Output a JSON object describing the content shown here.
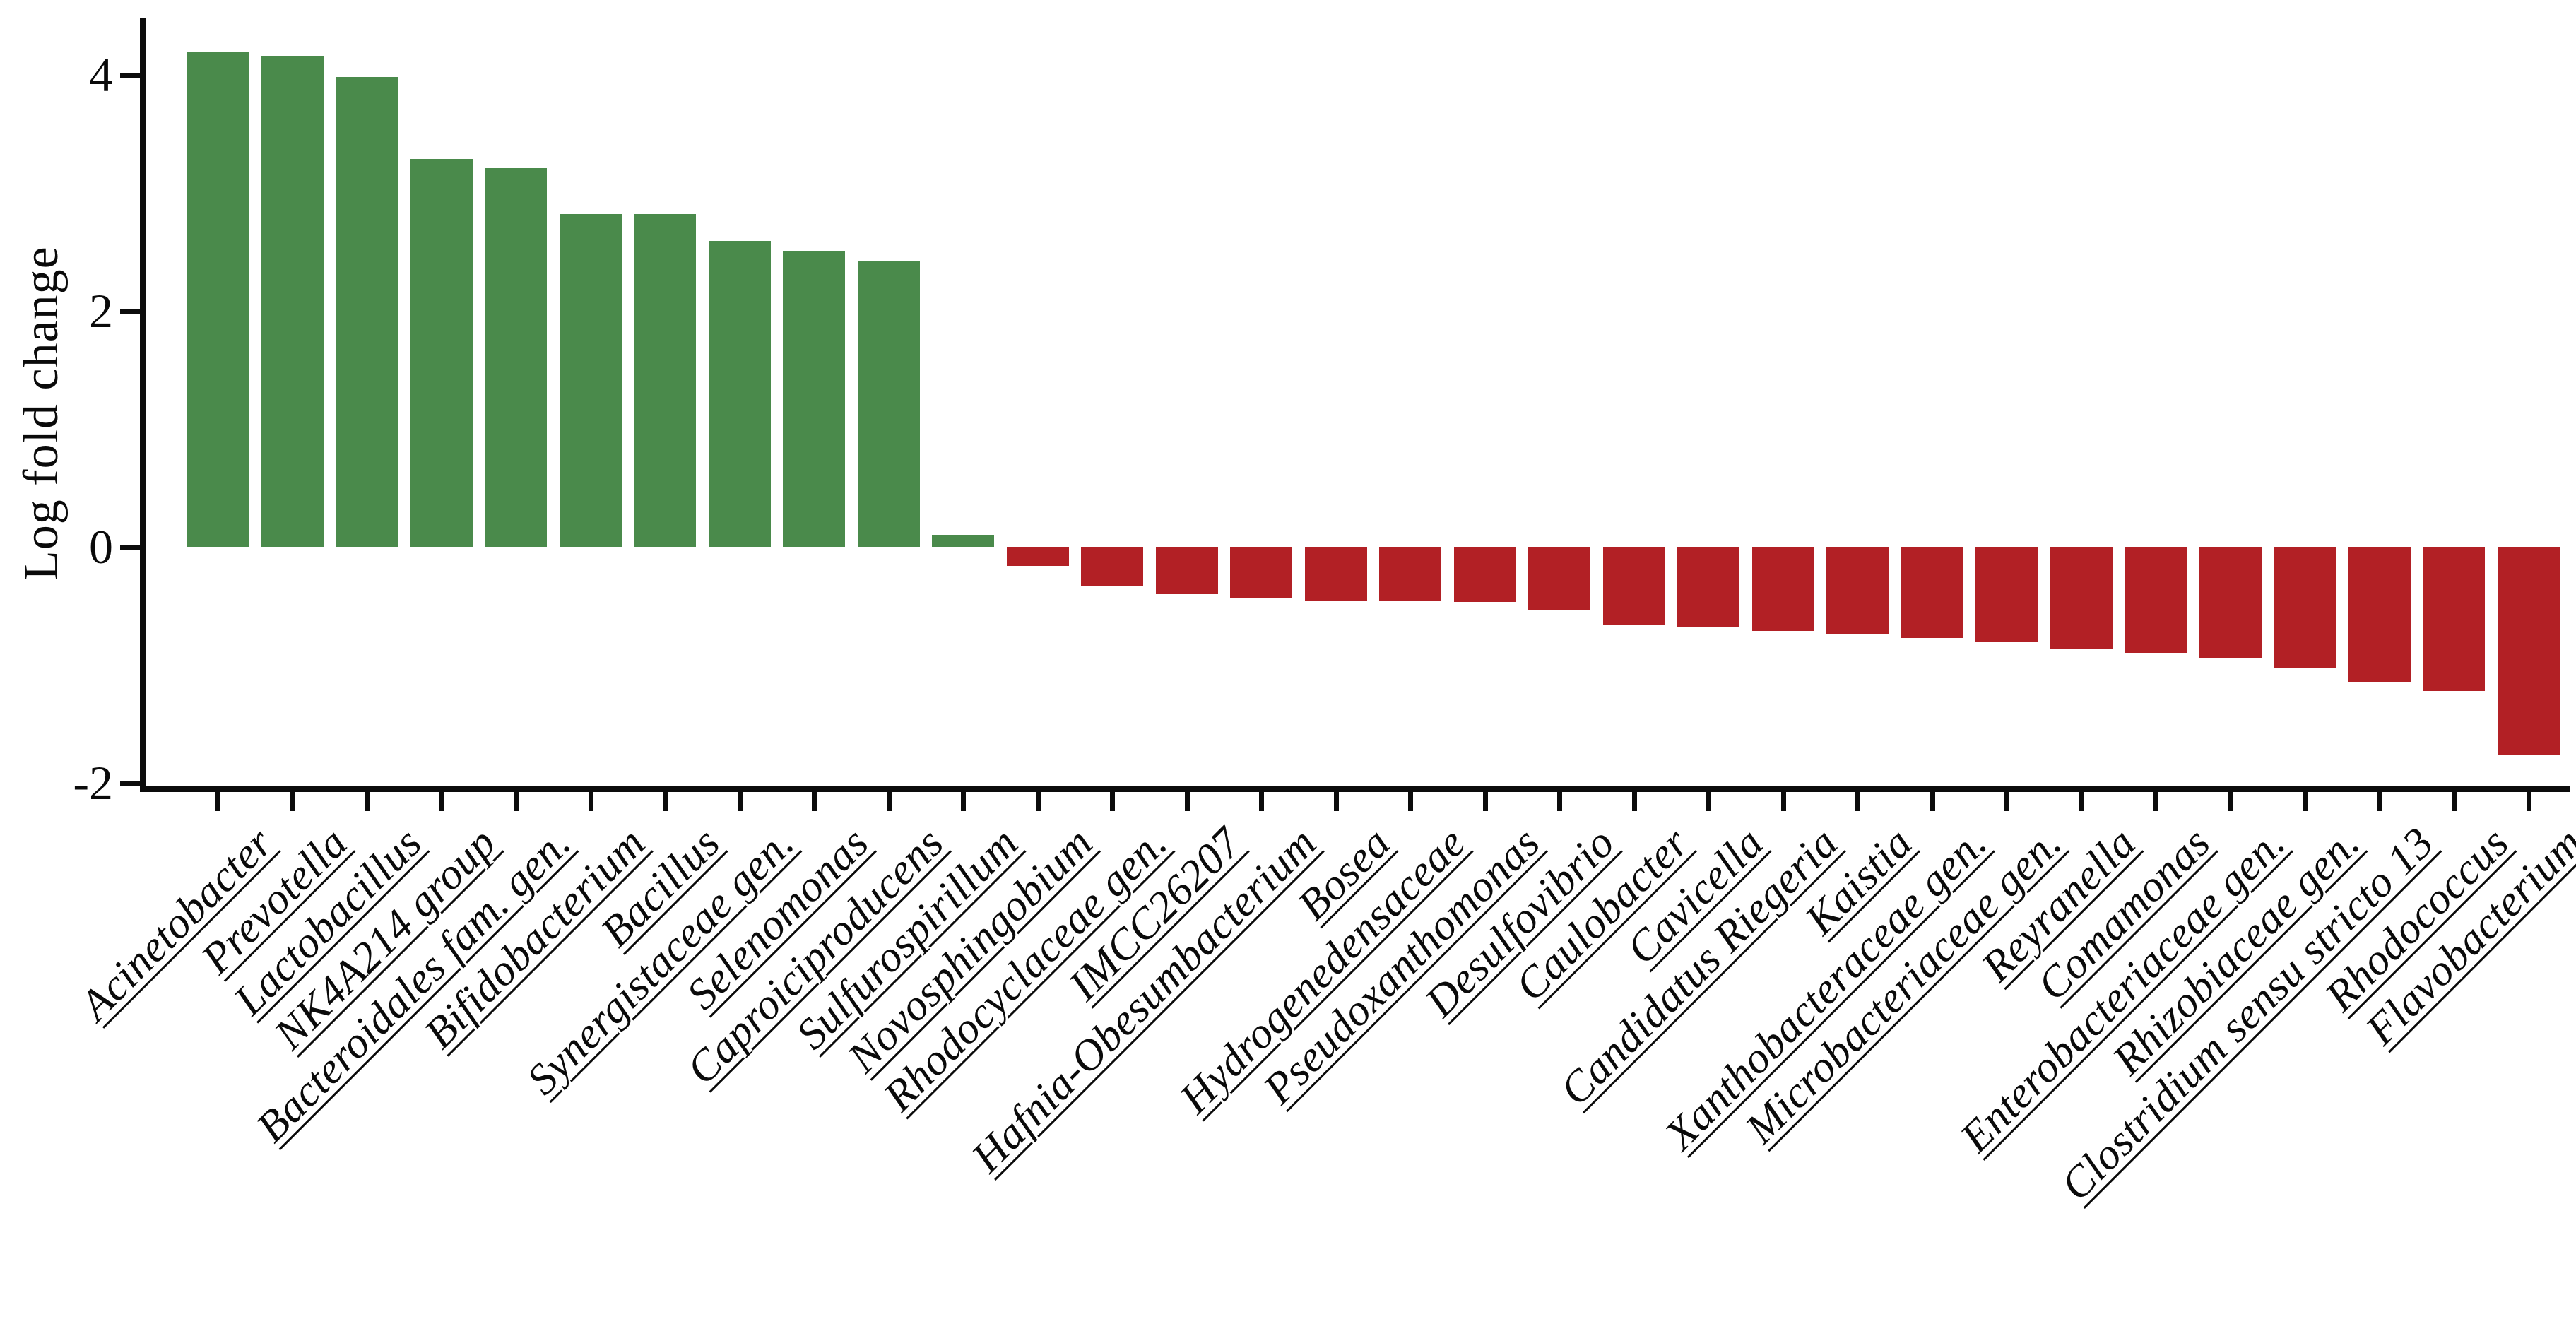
{
  "chart_data": {
    "type": "bar",
    "title": "",
    "xlabel": "",
    "ylabel": "Log fold change",
    "categories": [
      "Acinetobacter",
      "Prevotella",
      "Lactobacillus",
      "NK4A214 group",
      "Bacteroidales fam. gen.",
      "Bifidobacterium",
      "Bacillus",
      "Synergistaceae gen.",
      "Selenomonas",
      "Caproiciproducens",
      "Sulfurospirillum",
      "Novosphingobium",
      "Rhodocyclaceae gen.",
      "IMCC26207",
      "Hafnia-Obesumbacterium",
      "Bosea",
      "Hydrogenedensaceae",
      "Pseudoxanthomonas",
      "Desulfovibrio",
      "Caulobacter",
      "Cavicella",
      "Candidatus Riegeria",
      "Kaistia",
      "Xanthobacteraceae gen.",
      "Microbacteriaceae gen.",
      "Reyranella",
      "Comamonas",
      "Enterobacteriaceae gen.",
      "Rhizobiaceae gen.",
      "Clostridium sensu stricto 13",
      "Rhodococcus",
      "Flavobacterium"
    ],
    "values": [
      4.19,
      4.16,
      3.98,
      3.29,
      3.21,
      2.82,
      2.82,
      2.59,
      2.51,
      2.42,
      0.1,
      -0.16,
      -0.33,
      -0.4,
      -0.44,
      -0.46,
      -0.46,
      -0.47,
      -0.54,
      -0.66,
      -0.68,
      -0.71,
      -0.74,
      -0.77,
      -0.81,
      -0.86,
      -0.9,
      -0.94,
      -1.03,
      -1.15,
      -1.22,
      -1.76
    ],
    "yticks": [
      4,
      2,
      0,
      -2
    ],
    "ylim": [
      -2.07,
      4.45
    ],
    "grid": false,
    "legend": null,
    "positive_color": "#4A8A4B",
    "negative_color": "#B22025",
    "axis_color": "#0C0C0C"
  }
}
